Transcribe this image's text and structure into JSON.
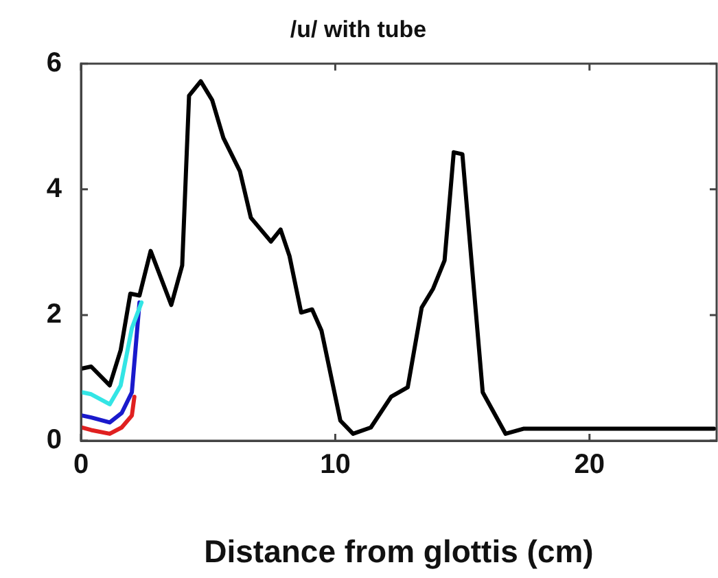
{
  "chart_data": {
    "type": "line",
    "title": "/u/ with tube",
    "xlabel": "Distance from glottis (cm)",
    "xlim": [
      0,
      25
    ],
    "xticks": [
      0,
      10,
      20
    ],
    "ylim": [
      0,
      6
    ],
    "yticks": [
      0,
      2,
      4,
      6
    ],
    "marker": "none",
    "line_style": "solid",
    "legend": false,
    "series": [
      {
        "color": "#000000",
        "x": [
          0.05,
          0.4,
          1.13,
          1.56,
          1.94,
          2.3,
          2.74,
          3.55,
          3.98,
          4.25,
          4.71,
          5.16,
          5.6,
          6.25,
          6.68,
          7.47,
          7.85,
          8.2,
          8.66,
          9.09,
          9.46,
          10.2,
          10.7,
          11.4,
          12.2,
          12.85,
          13.4,
          13.85,
          14.3,
          14.66,
          15.0,
          15.8,
          16.7,
          17.4,
          24.9
        ],
        "values": [
          1.15,
          1.18,
          0.88,
          1.44,
          2.34,
          2.31,
          3.02,
          2.16,
          2.79,
          5.49,
          5.72,
          5.42,
          4.82,
          4.29,
          3.55,
          3.17,
          3.36,
          2.94,
          2.04,
          2.09,
          1.75,
          0.32,
          0.11,
          0.21,
          0.7,
          0.85,
          2.12,
          2.42,
          2.87,
          4.59,
          4.56,
          0.77,
          0.11,
          0.19,
          0.19
        ]
      },
      {
        "color": "#33e5e5",
        "x": [
          0.05,
          0.4,
          1.13,
          1.56,
          2.0,
          2.38
        ],
        "values": [
          0.77,
          0.74,
          0.58,
          0.88,
          1.79,
          2.2
        ]
      },
      {
        "color": "#1a1acc",
        "x": [
          0.05,
          0.4,
          1.13,
          1.6,
          2.0,
          2.3
        ],
        "values": [
          0.4,
          0.37,
          0.29,
          0.44,
          0.77,
          2.2
        ]
      },
      {
        "color": "#e02020",
        "x": [
          0.05,
          0.4,
          1.13,
          1.6,
          2.0,
          2.1
        ],
        "values": [
          0.21,
          0.17,
          0.11,
          0.21,
          0.4,
          0.7
        ]
      }
    ]
  }
}
